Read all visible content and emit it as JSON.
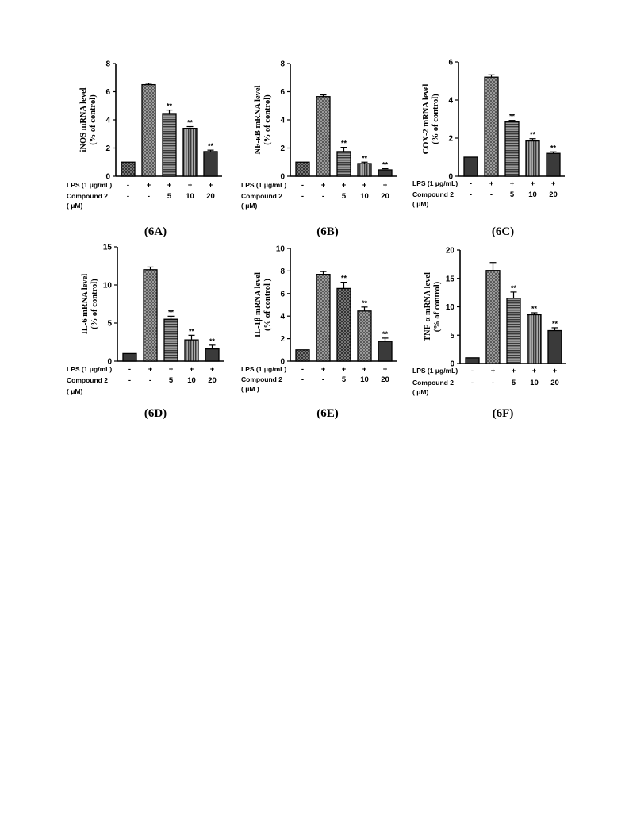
{
  "chart_data": [
    {
      "type": "bar",
      "panel_label": "(6A)",
      "ylabel_lines": [
        "iNOS mRNA level",
        "(% of control)"
      ],
      "ylim": [
        0,
        8
      ],
      "yticks": [
        0,
        2,
        4,
        6,
        8
      ],
      "values": [
        1.0,
        6.5,
        4.45,
        3.4,
        1.75
      ],
      "errors": [
        0,
        0.1,
        0.25,
        0.12,
        0.1
      ],
      "significance": [
        "",
        "",
        "**",
        "**",
        "**"
      ],
      "fills": [
        "dark-check",
        "light-check",
        "hlines",
        "vlines",
        "solid"
      ],
      "row_labels": [
        "LPS (1 μg/mL)",
        "Compound 2",
        "( μM)"
      ],
      "lps": [
        "-",
        "+",
        "+",
        "+",
        "+"
      ],
      "compound": [
        "-",
        "-",
        "5",
        "10",
        "20"
      ]
    },
    {
      "type": "bar",
      "panel_label": "(6B)",
      "ylabel_lines": [
        "NF-κB mRNA level",
        "(% of control)"
      ],
      "ylim": [
        0,
        8
      ],
      "yticks": [
        0,
        2,
        4,
        6,
        8
      ],
      "values": [
        1.0,
        5.65,
        1.75,
        0.9,
        0.45
      ],
      "errors": [
        0,
        0.12,
        0.3,
        0.1,
        0.08
      ],
      "significance": [
        "",
        "",
        "**",
        "**",
        "**"
      ],
      "fills": [
        "dark-check",
        "light-check",
        "hlines",
        "vlines",
        "solid"
      ],
      "row_labels": [
        "LPS (1 μg/mL)",
        "Compound 2",
        "( μM)"
      ],
      "lps": [
        "-",
        "+",
        "+",
        "+",
        "+"
      ],
      "compound": [
        "-",
        "-",
        "5",
        "10",
        "20"
      ]
    },
    {
      "type": "bar",
      "panel_label": "(6C)",
      "ylabel_lines": [
        "COX-2 mRNA level",
        "(% of control)"
      ],
      "ylim": [
        0,
        6
      ],
      "yticks": [
        0,
        2,
        4,
        6
      ],
      "values": [
        1.0,
        5.2,
        2.85,
        1.85,
        1.2
      ],
      "errors": [
        0,
        0.12,
        0.08,
        0.12,
        0.08
      ],
      "significance": [
        "",
        "",
        "**",
        "**",
        "**"
      ],
      "fills": [
        "solid",
        "light-check",
        "hlines",
        "vlines",
        "solid"
      ],
      "row_labels": [
        "LPS (1 μg/mL)",
        "Compound 2",
        "( μM)"
      ],
      "lps": [
        "-",
        "+",
        "+",
        "+",
        "+"
      ],
      "compound": [
        "-",
        "-",
        "5",
        "10",
        "20"
      ]
    },
    {
      "type": "bar",
      "panel_label": "(6D)",
      "ylabel_lines": [
        "IL-6 mRNA level",
        "(% of control)"
      ],
      "ylim": [
        0,
        15
      ],
      "yticks": [
        0,
        5,
        10,
        15
      ],
      "values": [
        1.0,
        12.0,
        5.5,
        2.8,
        1.6
      ],
      "errors": [
        0,
        0.35,
        0.4,
        0.6,
        0.5
      ],
      "significance": [
        "",
        "",
        "**",
        "**",
        "**"
      ],
      "fills": [
        "solid",
        "light-check",
        "hlines",
        "vlines",
        "solid"
      ],
      "row_labels": [
        "LPS (1 μg/mL)",
        "Compound 2",
        "( μM)"
      ],
      "lps": [
        "-",
        "+",
        "+",
        "+",
        "+"
      ],
      "compound": [
        "-",
        "-",
        "5",
        "10",
        "20"
      ]
    },
    {
      "type": "bar",
      "panel_label": "(6E)",
      "ylabel_lines": [
        "IL-1β mRNA level",
        "(% of control )"
      ],
      "ylim": [
        0,
        10
      ],
      "yticks": [
        0,
        2,
        4,
        6,
        8,
        10
      ],
      "values": [
        1.0,
        7.7,
        6.45,
        4.45,
        1.75
      ],
      "errors": [
        0,
        0.25,
        0.55,
        0.35,
        0.3
      ],
      "significance": [
        "",
        "",
        "**",
        "**",
        "**"
      ],
      "fills": [
        "dark-check",
        "light-check",
        "dark-check",
        "light-check",
        "solid"
      ],
      "row_labels": [
        "LPS (1 μg/mL)",
        "Compound 2",
        "( μM )"
      ],
      "lps": [
        "-",
        "+",
        "+",
        "+",
        "+"
      ],
      "compound": [
        "-",
        "-",
        "5",
        "10",
        "20"
      ]
    },
    {
      "type": "bar",
      "panel_label": "(6F)",
      "ylabel_lines": [
        "TNF-α mRNA level",
        "(% of control)"
      ],
      "ylim": [
        0,
        20
      ],
      "yticks": [
        0,
        5,
        10,
        15,
        20
      ],
      "values": [
        1.0,
        16.4,
        11.5,
        8.6,
        5.8
      ],
      "errors": [
        0,
        1.4,
        1.1,
        0.35,
        0.5
      ],
      "significance": [
        "",
        "",
        "**",
        "**",
        "**"
      ],
      "fills": [
        "solid",
        "light-check",
        "hlines",
        "vlines",
        "solid"
      ],
      "row_labels": [
        "LPS (1 μg/mL)",
        "Compound 2",
        "( μM)"
      ],
      "lps": [
        "-",
        "+",
        "+",
        "+",
        "+"
      ],
      "compound": [
        "-",
        "-",
        "5",
        "10",
        "20"
      ]
    }
  ]
}
